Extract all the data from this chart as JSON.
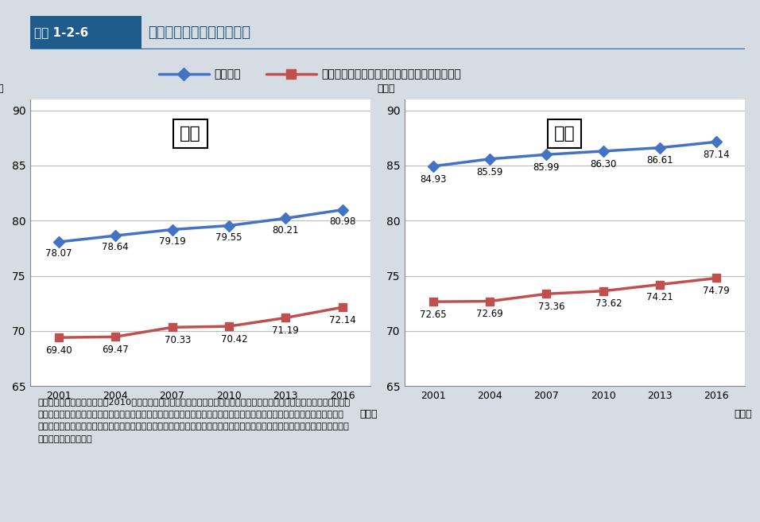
{
  "years": [
    2001,
    2004,
    2007,
    2010,
    2013,
    2016
  ],
  "male_avg": [
    78.07,
    78.64,
    79.19,
    79.55,
    80.21,
    80.98
  ],
  "male_health": [
    69.4,
    69.47,
    70.33,
    70.42,
    71.19,
    72.14
  ],
  "female_avg": [
    84.93,
    85.59,
    85.99,
    86.3,
    86.61,
    87.14
  ],
  "female_health": [
    72.65,
    72.69,
    73.36,
    73.62,
    74.21,
    74.79
  ],
  "avg_color": "#4472C4",
  "health_color": "#C0504D",
  "bg_color": "#D6DCE4",
  "chart_bg": "#FFFFFF",
  "header_box_color": "#1F5C8B",
  "header_text": "平均对命と健康对命の推移",
  "header_label": "図表 1-2-6",
  "label_avg": "平均对命",
  "label_health": "健康对命（日常生活に制限のない期間の平均）",
  "male_label": "男性",
  "female_label": "女性",
  "ylabel": "（年）",
  "xlabel": "（年）",
  "ylim": [
    65,
    91
  ],
  "yticks": [
    65,
    70,
    75,
    80,
    85,
    90
  ],
  "source_text": "資料：平均对命については、2010年につき厚生労働省政策統括官付参事官付人口動態・保健社会統計室「完全生命表」、他\n　　　の年につき「簡易生命表」、健康对命については厚生労働省政策統括官付参事官付人口動態・保健社会統計室「簡易生\n　　　命表」、「人口動態統計」、厚生労働省政策統括官付参事官付世帯統計室「国民生活基礎調査」、総務省統計局「人口推\n　　　計」より算出。"
}
